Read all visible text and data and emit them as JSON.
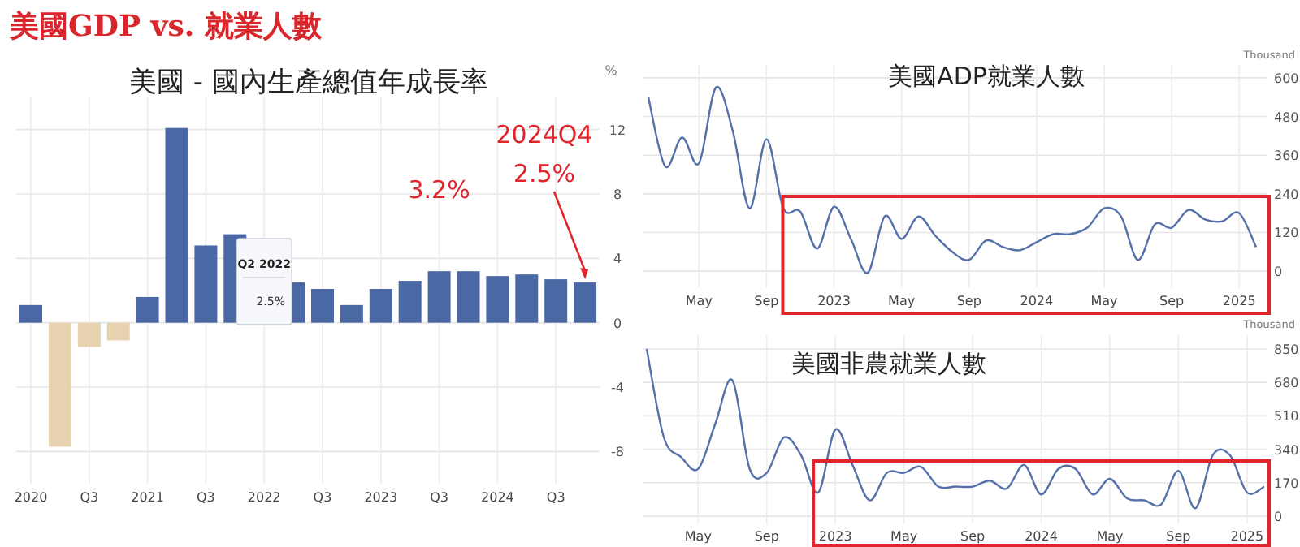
{
  "chart_data": [
    {
      "type": "bar",
      "title": "美國GDP vs. 就業人數",
      "subtitle": "美國 - 國內生產總值年成長率",
      "ylabel": "%",
      "categories": [
        "2020",
        null,
        "Q3",
        null,
        "2021",
        null,
        "Q3",
        null,
        "2022",
        null,
        "Q3",
        null,
        "2023",
        null,
        "Q3",
        null,
        "2024",
        null,
        "Q3",
        null
      ],
      "values": [
        1.1,
        -7.7,
        -1.5,
        -1.1,
        1.6,
        12.1,
        4.8,
        5.5,
        null,
        2.5,
        2.1,
        1.1,
        2.1,
        2.6,
        3.2,
        3.2,
        2.9,
        3.0,
        2.7,
        2.5
      ],
      "colors": [
        "#4a68a3",
        "#e6d2ae",
        "#e6d2ae",
        "#e6d2ae",
        "#4a68a3",
        "#4a68a3",
        "#4a68a3",
        "#4a68a3",
        null,
        "#4a68a3",
        "#4a68a3",
        "#4a68a3",
        "#4a68a3",
        "#4a68a3",
        "#4a68a3",
        "#4a68a3",
        "#4a68a3",
        "#4a68a3",
        "#4a68a3",
        "#4a68a3"
      ],
      "value_labels": [
        null,
        null,
        null,
        null,
        null,
        null,
        null,
        null,
        null,
        null,
        null,
        null,
        null,
        null,
        "3.2%",
        null,
        null,
        null,
        null,
        "2.5%"
      ],
      "annotations": [
        "2024Q4",
        "Q2 2022",
        "2.5%"
      ],
      "ylim": [
        -10,
        14
      ],
      "yticks": [
        -8,
        -4,
        0,
        4,
        8,
        12
      ],
      "grid": true
    },
    {
      "type": "line",
      "title": "美國ADP就業人數",
      "ylabel": "Thousand",
      "color": "#5470a8",
      "categories": [
        null,
        null,
        null,
        "May",
        null,
        null,
        null,
        "Sep",
        null,
        null,
        null,
        "2023",
        null,
        null,
        null,
        "May",
        null,
        null,
        null,
        "Sep",
        null,
        null,
        null,
        "2024",
        null,
        null,
        null,
        "May",
        null,
        null,
        null,
        "Sep",
        null,
        null,
        null,
        "2025",
        null
      ],
      "values": [
        540,
        325,
        415,
        335,
        570,
        435,
        195,
        410,
        195,
        185,
        70,
        200,
        100,
        -5,
        170,
        100,
        170,
        110,
        60,
        35,
        95,
        75,
        65,
        90,
        115,
        115,
        135,
        195,
        170,
        35,
        145,
        135,
        190,
        160,
        155,
        180,
        75
      ],
      "ylim": [
        -50,
        640
      ],
      "yticks": [
        0,
        120,
        240,
        360,
        480,
        600
      ],
      "grid": true
    },
    {
      "type": "line",
      "title": "美國非農就業人數",
      "ylabel": "Thousand",
      "color": "#5470a8",
      "categories": [
        null,
        null,
        null,
        "May",
        null,
        null,
        null,
        "Sep",
        null,
        null,
        null,
        "2023",
        null,
        null,
        null,
        "May",
        null,
        null,
        null,
        "Sep",
        null,
        null,
        null,
        "2024",
        null,
        null,
        null,
        "May",
        null,
        null,
        null,
        "Sep",
        null,
        null,
        null,
        "2025",
        null
      ],
      "values": [
        850,
        400,
        300,
        240,
        470,
        690,
        240,
        220,
        400,
        310,
        120,
        440,
        260,
        80,
        220,
        220,
        250,
        150,
        150,
        150,
        180,
        140,
        260,
        110,
        240,
        240,
        110,
        190,
        90,
        80,
        60,
        230,
        40,
        310,
        310,
        120,
        150
      ],
      "ylim": [
        -40,
        920
      ],
      "yticks": [
        0,
        170,
        340,
        510,
        680,
        850
      ],
      "grid": true
    }
  ]
}
